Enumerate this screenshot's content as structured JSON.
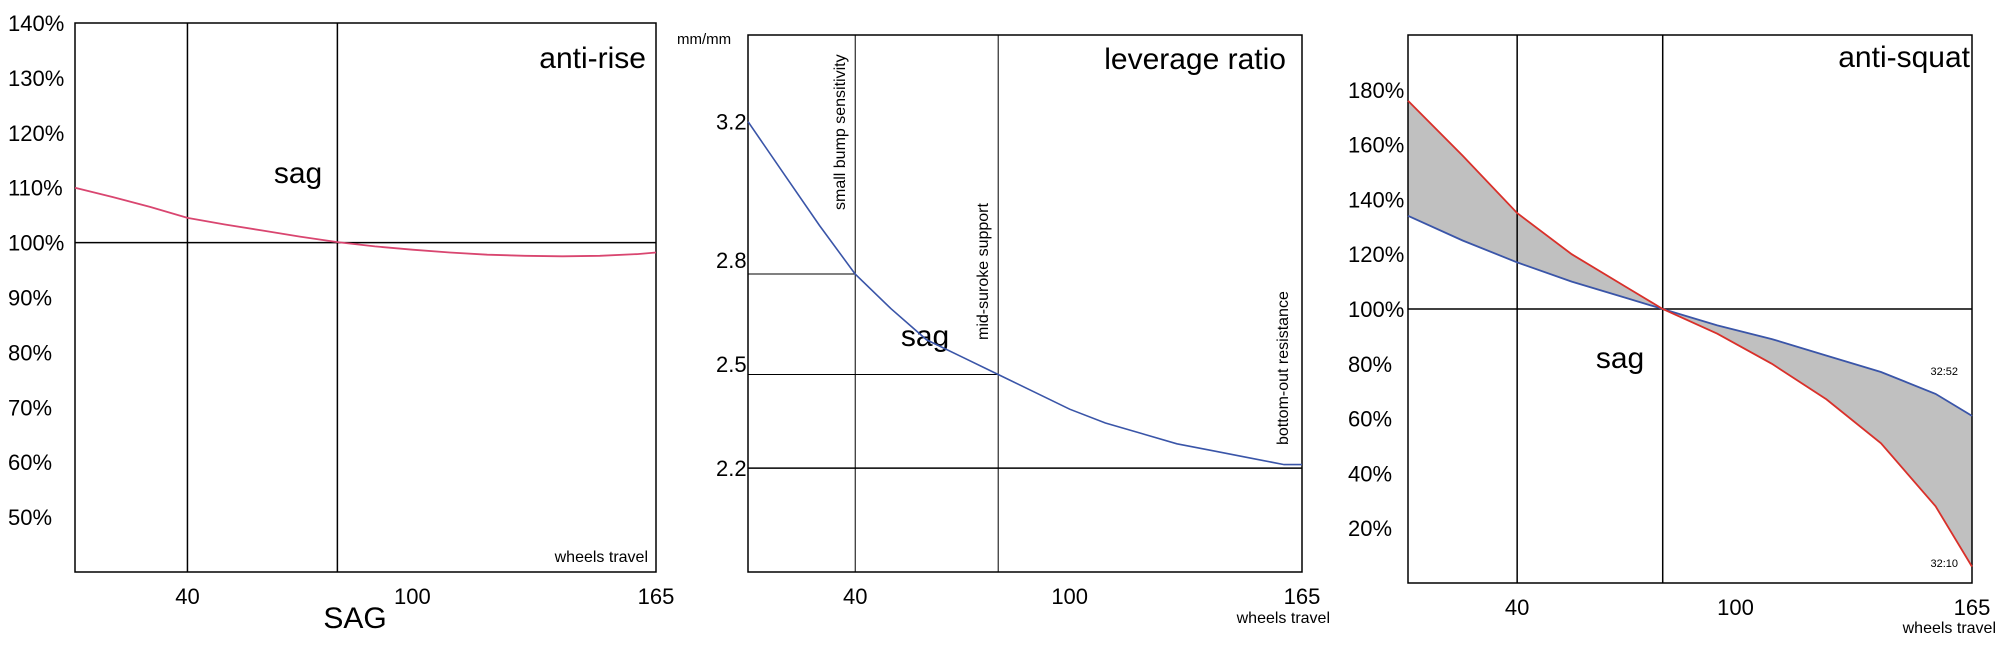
{
  "chart_data": [
    {
      "type": "line",
      "title": "anti-rise",
      "xlabel": "SAG",
      "xlabel_inner": "wheels travel",
      "ylabel": "",
      "annotation": "sag",
      "xlim": [
        10,
        165
      ],
      "ylim": [
        40,
        140
      ],
      "x_ticks": [
        {
          "value": 40,
          "label": "40"
        },
        {
          "value": 100,
          "label": "100"
        },
        {
          "value": 165,
          "label": "165"
        }
      ],
      "y_ticks": [
        {
          "value": 140,
          "label": "140%"
        },
        {
          "value": 130,
          "label": "130%"
        },
        {
          "value": 120,
          "label": "120%"
        },
        {
          "value": 110,
          "label": "110%"
        },
        {
          "value": 100,
          "label": "100%"
        },
        {
          "value": 90,
          "label": "90%"
        },
        {
          "value": 80,
          "label": "80%"
        },
        {
          "value": 70,
          "label": "70%"
        },
        {
          "value": 60,
          "label": "60%"
        },
        {
          "value": 50,
          "label": "50%"
        }
      ],
      "vlines": [
        40,
        80
      ],
      "hlines": [
        100
      ],
      "color": "#d94670",
      "series": [
        {
          "x": [
            10,
            20,
            30,
            40,
            50,
            60,
            70,
            80,
            90,
            100,
            110,
            120,
            130,
            140,
            150,
            160,
            165
          ],
          "y": [
            110,
            108.3,
            106.5,
            104.5,
            103.3,
            102.2,
            101.1,
            100.1,
            99.3,
            98.7,
            98.2,
            97.8,
            97.6,
            97.5,
            97.6,
            97.9,
            98.2
          ]
        }
      ]
    },
    {
      "type": "line",
      "title": "leverage ratio",
      "xlabel": "wheels travel",
      "ylabel": "mm/mm",
      "annotation": "sag",
      "xlim": [
        10,
        165
      ],
      "ylim": [
        1.9,
        3.45
      ],
      "x_ticks": [
        {
          "value": 40,
          "label": "40"
        },
        {
          "value": 100,
          "label": "100"
        },
        {
          "value": 165,
          "label": "165"
        }
      ],
      "y_ticks": [
        {
          "value": 3.2,
          "label": "3.2"
        },
        {
          "value": 2.8,
          "label": "2.8"
        },
        {
          "value": 2.5,
          "label": "2.5"
        },
        {
          "value": 2.2,
          "label": "2.2"
        }
      ],
      "vlines": [
        {
          "x": 40,
          "label": "small bump sensitivity"
        },
        {
          "x": 80,
          "label": "mid-suroke support"
        },
        {
          "x": 165,
          "label": "bottom-out resistance"
        }
      ],
      "hlines": [
        2.76,
        2.47
      ],
      "baseline": 2.2,
      "color": "#3a55a8",
      "series": [
        {
          "x": [
            10,
            20,
            30,
            40,
            50,
            60,
            70,
            80,
            90,
            100,
            110,
            120,
            130,
            140,
            150,
            160,
            165
          ],
          "y": [
            3.2,
            3.05,
            2.9,
            2.76,
            2.66,
            2.57,
            2.52,
            2.47,
            2.42,
            2.37,
            2.33,
            2.3,
            2.27,
            2.25,
            2.23,
            2.21,
            2.21
          ]
        }
      ]
    },
    {
      "type": "area",
      "title": "anti-squat",
      "xlabel": "wheels travel",
      "ylabel": "",
      "annotation": "sag",
      "xlim": [
        10,
        165
      ],
      "ylim": [
        0,
        200
      ],
      "x_ticks": [
        {
          "value": 40,
          "label": "40"
        },
        {
          "value": 100,
          "label": "100"
        },
        {
          "value": 165,
          "label": "165"
        }
      ],
      "y_ticks": [
        {
          "value": 180,
          "label": "180%"
        },
        {
          "value": 160,
          "label": "160%"
        },
        {
          "value": 140,
          "label": "140%"
        },
        {
          "value": 120,
          "label": "120%"
        },
        {
          "value": 100,
          "label": "100%"
        },
        {
          "value": 80,
          "label": "80%"
        },
        {
          "value": 60,
          "label": "60%"
        },
        {
          "value": 40,
          "label": "40%"
        },
        {
          "value": 20,
          "label": "20%"
        }
      ],
      "vlines": [
        40,
        80
      ],
      "hlines": [
        100
      ],
      "fill_color": "#c0c0c0",
      "series": [
        {
          "name": "32:52",
          "color": "#3a55a8",
          "x": [
            10,
            25,
            40,
            55,
            70,
            80,
            95,
            110,
            125,
            140,
            155,
            165
          ],
          "y": [
            134,
            125,
            117,
            110,
            104,
            100,
            94,
            89,
            83,
            77,
            69,
            61
          ]
        },
        {
          "name": "32:10",
          "color": "#d9302a",
          "x": [
            10,
            25,
            40,
            55,
            70,
            80,
            95,
            110,
            125,
            140,
            155,
            165
          ],
          "y": [
            176,
            156,
            135,
            120,
            108,
            100,
            91,
            80,
            67,
            51,
            28,
            6
          ]
        }
      ]
    }
  ]
}
